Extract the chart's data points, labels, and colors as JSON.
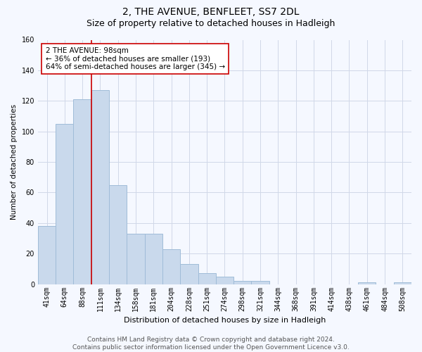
{
  "title": "2, THE AVENUE, BENFLEET, SS7 2DL",
  "subtitle": "Size of property relative to detached houses in Hadleigh",
  "xlabel": "Distribution of detached houses by size in Hadleigh",
  "ylabel": "Number of detached properties",
  "categories": [
    "41sqm",
    "64sqm",
    "88sqm",
    "111sqm",
    "134sqm",
    "158sqm",
    "181sqm",
    "204sqm",
    "228sqm",
    "251sqm",
    "274sqm",
    "298sqm",
    "321sqm",
    "344sqm",
    "368sqm",
    "391sqm",
    "414sqm",
    "438sqm",
    "461sqm",
    "484sqm",
    "508sqm"
  ],
  "values": [
    38,
    105,
    121,
    127,
    65,
    33,
    33,
    23,
    13,
    7,
    5,
    2,
    2,
    0,
    0,
    0,
    0,
    0,
    1,
    0,
    1
  ],
  "bar_color": "#c9d9ec",
  "bar_edgecolor": "#a0bcd8",
  "highlight_color": "#cc0000",
  "annotation_text": "2 THE AVENUE: 98sqm\n← 36% of detached houses are smaller (193)\n64% of semi-detached houses are larger (345) →",
  "annotation_box_color": "#ffffff",
  "annotation_box_edgecolor": "#cc0000",
  "ylim": [
    0,
    160
  ],
  "yticks": [
    0,
    20,
    40,
    60,
    80,
    100,
    120,
    140,
    160
  ],
  "grid_color": "#d0d8e8",
  "background_color": "#f5f8ff",
  "footer_text": "Contains HM Land Registry data © Crown copyright and database right 2024.\nContains public sector information licensed under the Open Government Licence v3.0.",
  "title_fontsize": 10,
  "subtitle_fontsize": 9,
  "xlabel_fontsize": 8,
  "ylabel_fontsize": 7.5,
  "tick_fontsize": 7,
  "annotation_fontsize": 7.5,
  "footer_fontsize": 6.5
}
